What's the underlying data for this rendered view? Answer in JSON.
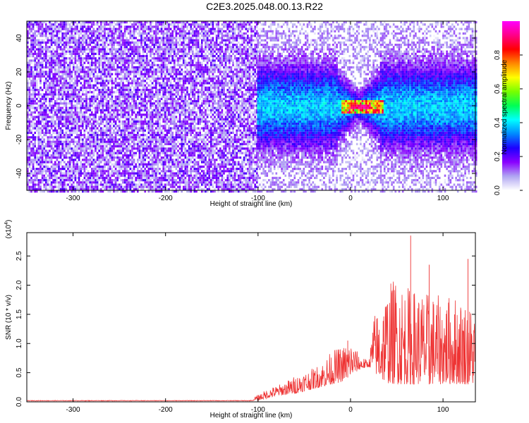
{
  "title": "C2E3.2025.048.00.13.R22",
  "chart_data": [
    {
      "type": "heatmap",
      "xlabel": "Height of straight line (km)",
      "ylabel": "Frequency (Hz)",
      "xlim": [
        -350,
        135
      ],
      "ylim": [
        -50,
        50
      ],
      "xticks": [
        -300,
        -200,
        -100,
        0,
        100
      ],
      "yticks": [
        -40,
        -20,
        0,
        20,
        40
      ],
      "colorbar": {
        "label": "Normalized spectral amplitude",
        "range": [
          0,
          1
        ],
        "ticks": [
          "0.0",
          "0.2",
          "0.4",
          "0.6",
          "0.8"
        ],
        "colormap": [
          "#ffffff",
          "#b0a6f2",
          "#8a00ff",
          "#1d00ff",
          "#0088ff",
          "#00ffff",
          "#00ff55",
          "#77ff00",
          "#ffff00",
          "#ff8800",
          "#ff0000",
          "#ff0088",
          "#ff00ff"
        ]
      },
      "regions": [
        {
          "x_range": [
            -350,
            -101
          ],
          "description_value": "broadband noise, amplitude ~0.05-0.2 across all frequencies"
        },
        {
          "x_range": [
            -101,
            135
          ],
          "description_value": "signal concentrated near 0 Hz, peak amplitude ~0.9 near x 0 to 15"
        }
      ]
    },
    {
      "type": "line",
      "xlabel": "Height of straight line (km)",
      "ylabel": "SNR (10 * v/v)",
      "y_multiplier": "(x10^4)",
      "xlim": [
        -350,
        135
      ],
      "ylim": [
        0,
        2.9
      ],
      "xticks": [
        -300,
        -200,
        -100,
        0,
        100
      ],
      "yticks": [
        "0.0",
        "0.5",
        "1.0",
        "1.5",
        "2.0",
        "2.5"
      ],
      "series": [
        {
          "color": "#ee3333",
          "envelope": {
            "x": [
              -350,
              -110,
              -100,
              -90,
              -80,
              -70,
              -60,
              -50,
              -40,
              -30,
              -20,
              -10,
              0,
              10,
              20,
              25,
              30,
              40,
              50,
              60,
              70,
              80,
              90,
              100,
              110,
              120,
              135
            ],
            "upper": [
              0.03,
              0.03,
              0.12,
              0.22,
              0.28,
              0.35,
              0.45,
              0.52,
              0.58,
              0.7,
              0.88,
              0.95,
              1.05,
              0.8,
              0.7,
              1.5,
              1.6,
              2.0,
              2.2,
              2.0,
              1.95,
              1.9,
              1.85,
              1.8,
              1.85,
              1.8,
              1.6
            ],
            "baseline": [
              0.02,
              0.02,
              0.03,
              0.06,
              0.1,
              0.12,
              0.14,
              0.18,
              0.22,
              0.26,
              0.3,
              0.34,
              0.45,
              0.55,
              0.6,
              0.55,
              0.4,
              0.32,
              0.3,
              0.3,
              0.3,
              0.3,
              0.3,
              0.3,
              0.3,
              0.3,
              0.3
            ]
          },
          "spikes": [
            {
              "x": 65,
              "y": 2.85
            },
            {
              "x": -3,
              "y": 1.05
            },
            {
              "x": 127,
              "y": 2.45
            },
            {
              "x": 85,
              "y": 2.35
            }
          ]
        }
      ]
    }
  ]
}
